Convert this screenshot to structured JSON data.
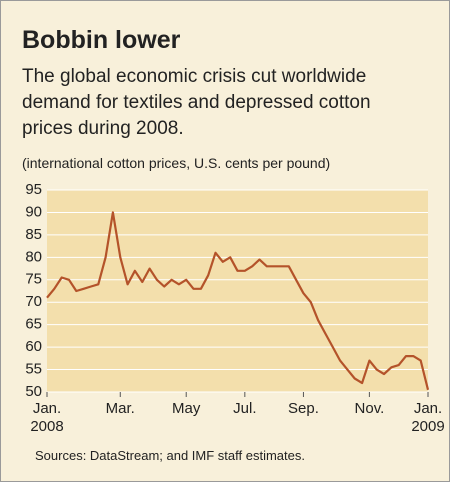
{
  "chart_data": {
    "type": "line",
    "title": "Bobbin lower",
    "subtitle": [
      "The global economic crisis cut worldwide",
      "demand for textiles and depressed cotton",
      "prices during 2008."
    ],
    "y_label": "(international cotton prices, U.S. cents per pound)",
    "source": "Sources: DataStream; and IMF staff estimates.",
    "categories": [
      "Jan.",
      null,
      null,
      null,
      null,
      null,
      null,
      null,
      null,
      null,
      "Mar.",
      null,
      null,
      null,
      null,
      null,
      null,
      null,
      null,
      "May",
      null,
      null,
      null,
      null,
      null,
      null,
      null,
      "Jul.",
      null,
      null,
      null,
      null,
      null,
      null,
      null,
      "Sep.",
      null,
      null,
      null,
      null,
      null,
      null,
      null,
      null,
      "Nov.",
      null,
      null,
      null,
      null,
      null,
      null,
      null,
      "Jan."
    ],
    "year_labels": [
      "2008",
      "2009"
    ],
    "series": [
      {
        "name": "Cotton price",
        "color": "#b4532a",
        "values": [
          71,
          73,
          75.5,
          75,
          72.5,
          73,
          73.5,
          74,
          80,
          90,
          80,
          74,
          77,
          74.5,
          77.5,
          75,
          73.5,
          75,
          74,
          75,
          73,
          73,
          76,
          81,
          79,
          80,
          77,
          77,
          78,
          79.5,
          78,
          78,
          78,
          78,
          75,
          72,
          70,
          66,
          63,
          60,
          57,
          55,
          53,
          52,
          57,
          55,
          54,
          55.5,
          56,
          58,
          58,
          57,
          50.5
        ]
      }
    ],
    "ylim": [
      50,
      95
    ],
    "yticks": [
      50,
      55,
      60,
      65,
      70,
      75,
      80,
      85,
      90,
      95
    ],
    "grid": true
  }
}
